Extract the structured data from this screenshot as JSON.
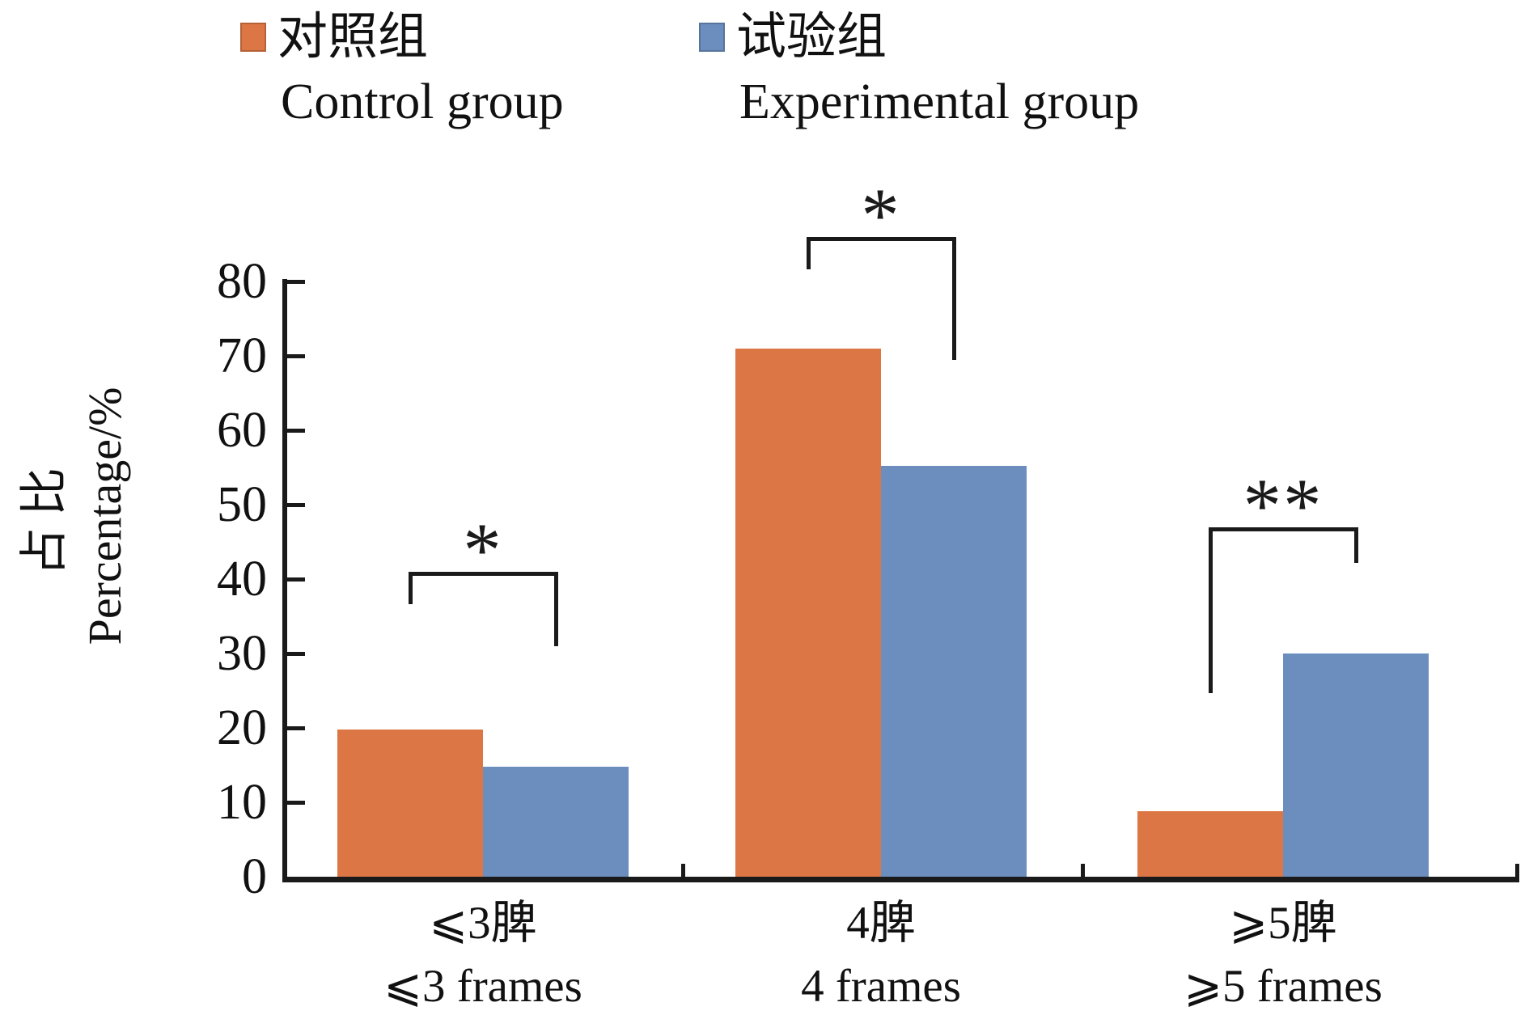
{
  "legend": {
    "entries": [
      {
        "label_zh": "对照组",
        "label_en": "Control group",
        "color": "#dc7745"
      },
      {
        "label_zh": "试验组",
        "label_en": "Experimental group",
        "color": "#6b8ebe"
      }
    ]
  },
  "y_axis": {
    "label_zh": "占比",
    "label_en": "Percentage/%",
    "min": 0,
    "max": 80,
    "ticks": [
      0,
      10,
      20,
      30,
      40,
      50,
      60,
      70,
      80
    ]
  },
  "chart_data": {
    "type": "bar",
    "title": "",
    "categories_zh": [
      "⩽3脾",
      "4脾",
      "⩾5脾"
    ],
    "categories_en": [
      "⩽3 frames",
      "4 frames",
      "⩾5 frames"
    ],
    "series": [
      {
        "name_zh": "对照组",
        "name_en": "Control group",
        "color": "#dc7745",
        "values": [
          19.8,
          71.0,
          8.8
        ]
      },
      {
        "name_zh": "试验组",
        "name_en": "Experimental group",
        "color": "#6b8ebe",
        "values": [
          14.8,
          55.2,
          30.0
        ]
      }
    ],
    "ylabel_zh": "占比",
    "ylabel_en": "Percentage/%",
    "ylim": [
      0,
      80
    ],
    "grid": false,
    "legend_position": "top",
    "significance": [
      {
        "category_index": 0,
        "stars": "*",
        "bracket_value": 41.0,
        "left_leg_end_value": 36.6,
        "right_leg_end_value": 31.0
      },
      {
        "category_index": 1,
        "stars": "*",
        "bracket_value": 86.0,
        "left_leg_end_value": 81.6,
        "right_leg_end_value": 69.5
      },
      {
        "category_index": 2,
        "stars": "**",
        "bracket_value": 47.0,
        "left_leg_end_value": 24.7,
        "right_leg_end_value": 42.2
      }
    ]
  }
}
